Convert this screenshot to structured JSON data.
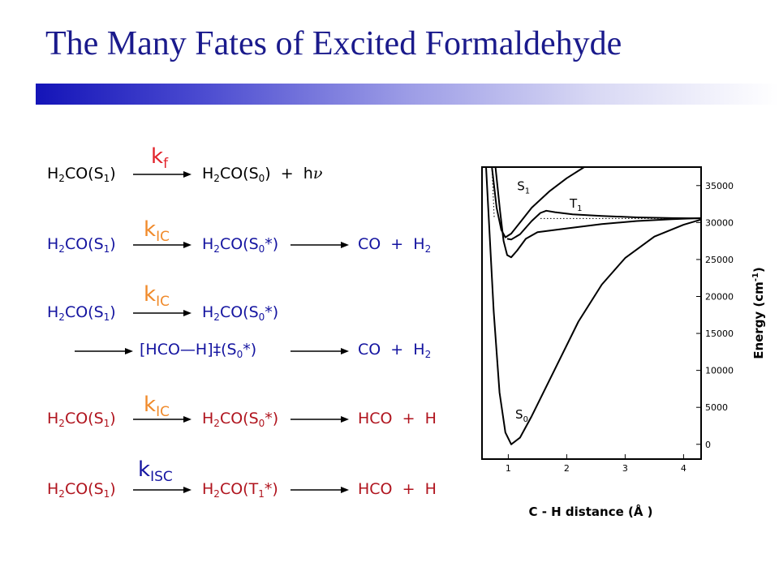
{
  "slide": {
    "title": "The Many Fates of  Excited Formaldehyde"
  },
  "reactions": {
    "r1": {
      "rate_main": "k",
      "rate_sub": "f",
      "react_main": "H",
      "react_sub1": "2",
      "react_mid": "CO(S",
      "react_sub2": "1",
      "react_end": ")",
      "prod_main": "H",
      "prod_sub1": "2",
      "prod_mid": "CO(S",
      "prod_sub2": "0",
      "prod_end": ")  +  h",
      "prod_nu": "ν"
    },
    "r2": {
      "rate_main": "k",
      "rate_sub": "IC",
      "react_main": "H",
      "react_sub1": "2",
      "react_mid": "CO(S",
      "react_sub2": "1",
      "react_end": ")",
      "inter_main": "H",
      "inter_sub1": "2",
      "inter_mid": "CO(S",
      "inter_sub2": "0",
      "inter_end": "*)",
      "prod_main": "CO  +  H",
      "prod_sub": "2"
    },
    "r3": {
      "rate_main": "k",
      "rate_sub": "IC",
      "react_main": "H",
      "react_sub1": "2",
      "react_mid": "CO(S",
      "react_sub2": "1",
      "react_end": ")",
      "inter_main": "H",
      "inter_sub1": "2",
      "inter_mid": "CO(S",
      "inter_sub2": "0",
      "inter_end": "*)",
      "ts_main": "[HCO—H]‡(S",
      "ts_sub": "0",
      "ts_end": "*)",
      "prod_main": "CO  +  H",
      "prod_sub": "2"
    },
    "r4": {
      "rate_main": "k",
      "rate_sub": "IC",
      "react_main": "H",
      "react_sub1": "2",
      "react_mid": "CO(S",
      "react_sub2": "1",
      "react_end": ")",
      "inter_main": "H",
      "inter_sub1": "2",
      "inter_mid": "CO(S",
      "inter_sub2": "0",
      "inter_end": "*)",
      "prod": "HCO  +  H"
    },
    "r5": {
      "rate_main": "k",
      "rate_sub": "ISC",
      "react_main": "H",
      "react_sub1": "2",
      "react_mid": "CO(S",
      "react_sub2": "1",
      "react_end": ")",
      "inter_main": "H",
      "inter_sub1": "2",
      "inter_mid": "CO(T",
      "inter_sub2": "1",
      "inter_end": "*)",
      "prod": "HCO  +  H"
    }
  },
  "colors": {
    "title": "#1a1a8c",
    "blue_text": "#1414a0",
    "red_text": "#b0141e",
    "rate_orange": "#f08a2a",
    "rate_red": "#e2222a"
  },
  "energy_plot": {
    "x_label": "C - H distance (Å )",
    "y_label_main": "Energy (cm",
    "y_label_sup": "-1",
    "y_label_end": ")",
    "x_ticks": [
      "1",
      "2",
      "3",
      "4"
    ],
    "x_tick_values": [
      1,
      2,
      3,
      4
    ],
    "y_ticks": [
      "0",
      "5000",
      "10000",
      "15000",
      "20000",
      "25000",
      "30000",
      "35000"
    ],
    "y_tick_values": [
      0,
      5000,
      10000,
      15000,
      20000,
      25000,
      30000,
      35000
    ],
    "x_range": [
      0.55,
      4.3
    ],
    "y_range": [
      -2000,
      37500
    ],
    "states": [
      {
        "label": "S",
        "sub": "0"
      },
      {
        "label": "S",
        "sub": "1"
      },
      {
        "label": "T",
        "sub": "1"
      }
    ],
    "curves": {
      "S0": [
        [
          0.62,
          37500
        ],
        [
          0.75,
          18000
        ],
        [
          0.85,
          7000
        ],
        [
          0.95,
          1600
        ],
        [
          1.05,
          0
        ],
        [
          1.2,
          900
        ],
        [
          1.4,
          3800
        ],
        [
          1.8,
          10200
        ],
        [
          2.2,
          16600
        ],
        [
          2.6,
          21600
        ],
        [
          3.0,
          25200
        ],
        [
          3.5,
          28100
        ],
        [
          4.0,
          29700
        ],
        [
          4.3,
          30400
        ]
      ],
      "S1_lower": [
        [
          0.78,
          37500
        ],
        [
          0.86,
          31500
        ],
        [
          0.92,
          27500
        ],
        [
          0.98,
          25600
        ],
        [
          1.05,
          25300
        ],
        [
          1.15,
          26200
        ],
        [
          1.3,
          27800
        ],
        [
          1.5,
          28700
        ],
        [
          2.0,
          29200
        ],
        [
          2.6,
          29800
        ],
        [
          3.2,
          30200
        ],
        [
          3.8,
          30450
        ],
        [
          4.3,
          30600
        ]
      ],
      "S1_upper": [
        [
          0.72,
          37500
        ],
        [
          0.8,
          32000
        ],
        [
          0.88,
          29000
        ],
        [
          0.95,
          28000
        ],
        [
          1.05,
          28500
        ],
        [
          1.2,
          30000
        ],
        [
          1.4,
          32000
        ],
        [
          1.7,
          34200
        ],
        [
          2.0,
          36000
        ],
        [
          2.3,
          37500
        ]
      ],
      "T1": [
        [
          0.98,
          27800
        ],
        [
          1.05,
          27700
        ],
        [
          1.2,
          28400
        ],
        [
          1.4,
          30200
        ],
        [
          1.55,
          31300
        ],
        [
          1.65,
          31600
        ],
        [
          1.8,
          31400
        ],
        [
          2.1,
          31100
        ],
        [
          2.6,
          30900
        ],
        [
          3.2,
          30700
        ],
        [
          3.8,
          30600
        ],
        [
          4.3,
          30550
        ]
      ]
    },
    "dotted_level": 30550
  }
}
